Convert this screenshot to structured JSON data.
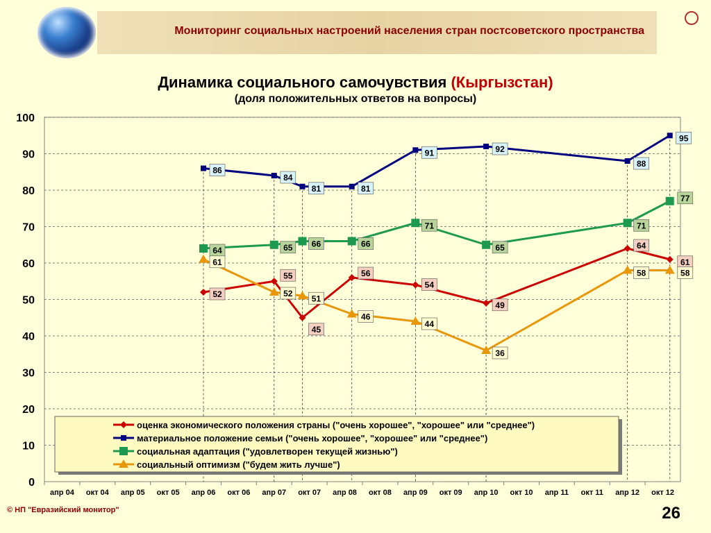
{
  "header": {
    "title": "Мониторинг социальных настроений населения стран постсоветского пространства"
  },
  "chart_title_main": "Динамика социального самочувствия ",
  "chart_title_country": "(Кыргызстан)",
  "chart_subtitle": "(доля положительных ответов на вопросы)",
  "footer": {
    "copyright": "© НП \"Евразийский монитор\"",
    "page_number": "26"
  },
  "colors": {
    "economy": "#cc0000",
    "family": "#000080",
    "adaptation": "#1e9a50",
    "optimism": "#e8960a",
    "label_economy_bg": "#f5cfc0",
    "label_family_bg": "#d8f2fa",
    "label_adapt_bg": "#b8d49a",
    "label_opt_bg": "#fffbd0"
  },
  "chart_data": {
    "type": "line",
    "categories": [
      "апр 04",
      "окт 04",
      "апр 05",
      "окт 05",
      "апр 06",
      "окт 06",
      "апр 07",
      "окт 07",
      "апр 08",
      "окт 08",
      "апр 09",
      "окт 09",
      "апр 10",
      "окт 10",
      "апр 11",
      "окт 11",
      "апр 12",
      "окт 12"
    ],
    "ylim": [
      0,
      100
    ],
    "yticks": [
      0,
      10,
      20,
      30,
      40,
      50,
      60,
      70,
      80,
      90,
      100
    ],
    "grid": true,
    "legend_position": "bottom-left inside",
    "series": [
      {
        "name": "оценка экономического положения страны (\"очень хорошее\", \"хорошее\" или \"среднее\")",
        "key": "economy",
        "marker": "diamond",
        "points": [
          [
            4,
            52
          ],
          [
            6,
            55
          ],
          [
            6.8,
            45
          ],
          [
            8.2,
            56
          ],
          [
            10,
            54
          ],
          [
            12,
            49
          ],
          [
            16,
            64
          ],
          [
            17.2,
            61
          ]
        ]
      },
      {
        "name": "материальное положение семьи (\"очень хорошее\", \"хорошее\" или \"среднее\")",
        "key": "family",
        "marker": "square-small",
        "points": [
          [
            4,
            86
          ],
          [
            6,
            84
          ],
          [
            6.8,
            81
          ],
          [
            8.2,
            81
          ],
          [
            10,
            91
          ],
          [
            12,
            92
          ],
          [
            16,
            88
          ],
          [
            17.2,
            95
          ]
        ]
      },
      {
        "name": "социальная адаптация (\"удовлетворен текущей жизнью\")",
        "key": "adaptation",
        "marker": "square",
        "points": [
          [
            4,
            64
          ],
          [
            6,
            65
          ],
          [
            6.8,
            66
          ],
          [
            8.2,
            66
          ],
          [
            10,
            71
          ],
          [
            12,
            65
          ],
          [
            16,
            71
          ],
          [
            17.2,
            77
          ]
        ]
      },
      {
        "name": "социальный оптимизм (\"будем жить лучше\")",
        "key": "optimism",
        "marker": "triangle",
        "points": [
          [
            4,
            61
          ],
          [
            6,
            52
          ],
          [
            6.8,
            51
          ],
          [
            8.2,
            46
          ],
          [
            10,
            44
          ],
          [
            12,
            36
          ],
          [
            16,
            58
          ],
          [
            17.2,
            58
          ]
        ]
      }
    ],
    "data_labels": {
      "economy": [
        "52",
        "55",
        "45",
        "56",
        "54",
        "49",
        "64",
        "61"
      ],
      "family": [
        "86",
        "84",
        "81",
        "81",
        "91",
        "92",
        "88",
        "95"
      ],
      "adaptation": [
        "64",
        "65",
        "66",
        "66",
        "71",
        "65",
        "71",
        "77"
      ],
      "optimism": [
        "61",
        "52",
        "51",
        "46",
        "44",
        "36",
        "58",
        "58"
      ]
    }
  }
}
